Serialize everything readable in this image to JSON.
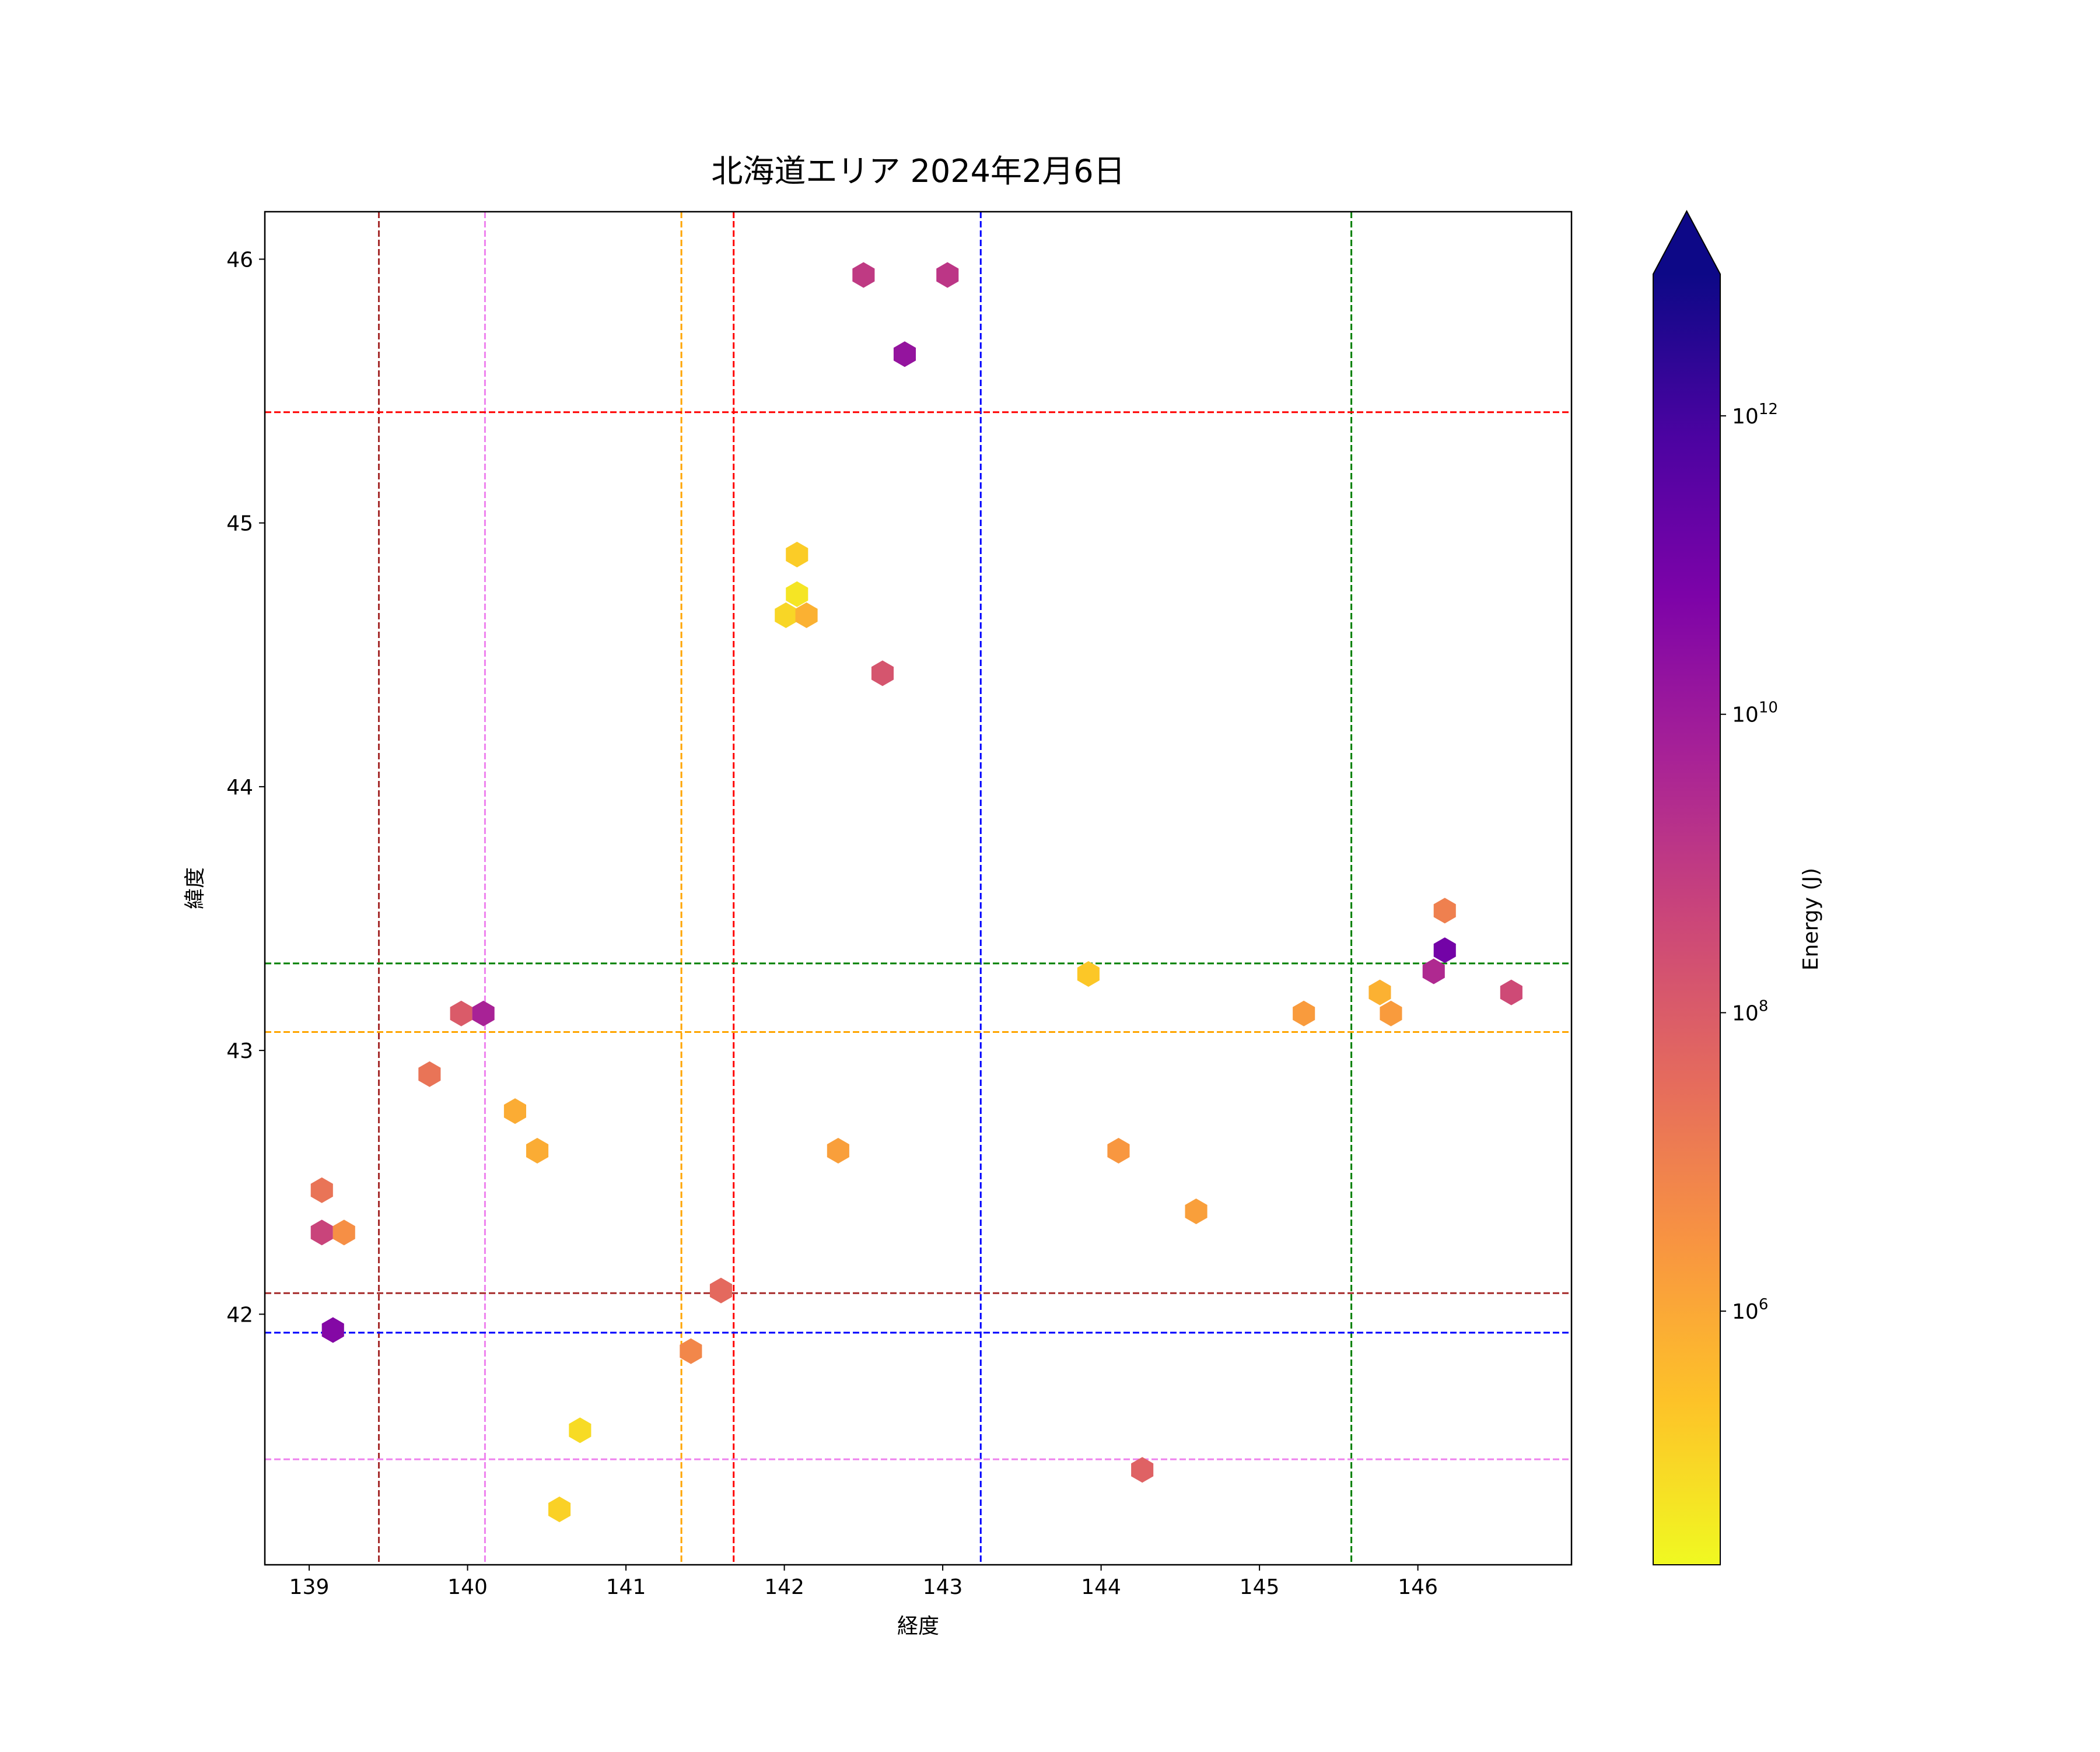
{
  "chart_data": {
    "type": "scatter",
    "marker": "hexagon",
    "title": "北海道エリア 2024年2月6日",
    "xlabel": "経度",
    "ylabel": "緯度",
    "xlim": [
      138.72,
      146.97
    ],
    "ylim": [
      41.05,
      46.18
    ],
    "xticks": [
      139,
      140,
      141,
      142,
      143,
      144,
      145,
      146
    ],
    "yticks": [
      42,
      43,
      44,
      45,
      46
    ],
    "grid": false,
    "colorbar": {
      "label": "Energy (J)",
      "scale": "log",
      "colormap": "plasma_r",
      "range_log10": [
        4.3,
        12.95
      ],
      "extend": "max",
      "ticks": [
        {
          "base": "10",
          "exp": "6",
          "log10": 6
        },
        {
          "base": "10",
          "exp": "8",
          "log10": 8
        },
        {
          "base": "10",
          "exp": "10",
          "log10": 10
        },
        {
          "base": "10",
          "exp": "12",
          "log10": 12
        }
      ]
    },
    "reference_lines": {
      "vertical": [
        {
          "x": 139.44,
          "color": "#a52a2a"
        },
        {
          "x": 140.11,
          "color": "#ee82ee"
        },
        {
          "x": 141.35,
          "color": "#ffa500"
        },
        {
          "x": 141.68,
          "color": "#ff0000"
        },
        {
          "x": 143.24,
          "color": "#0000ff"
        },
        {
          "x": 145.58,
          "color": "#008000"
        }
      ],
      "horizontal": [
        {
          "y": 45.42,
          "color": "#ff0000"
        },
        {
          "y": 43.33,
          "color": "#008000"
        },
        {
          "y": 43.07,
          "color": "#ffa500"
        },
        {
          "y": 42.08,
          "color": "#a52a2a"
        },
        {
          "y": 41.93,
          "color": "#0000ff"
        },
        {
          "y": 41.45,
          "color": "#ee82ee"
        }
      ]
    },
    "points": [
      {
        "lon": 142.5,
        "lat": 45.94,
        "log_energy": 9.0
      },
      {
        "lon": 143.03,
        "lat": 45.94,
        "log_energy": 9.1
      },
      {
        "lon": 142.76,
        "lat": 45.64,
        "log_energy": 10.2
      },
      {
        "lon": 142.08,
        "lat": 44.88,
        "log_energy": 5.2
      },
      {
        "lon": 142.08,
        "lat": 44.73,
        "log_energy": 4.7
      },
      {
        "lon": 142.01,
        "lat": 44.65,
        "log_energy": 5.0
      },
      {
        "lon": 142.14,
        "lat": 44.65,
        "log_energy": 5.8
      },
      {
        "lon": 142.62,
        "lat": 44.43,
        "log_energy": 8.2
      },
      {
        "lon": 146.17,
        "lat": 43.53,
        "log_energy": 7.0
      },
      {
        "lon": 146.17,
        "lat": 43.38,
        "log_energy": 11.0
      },
      {
        "lon": 146.1,
        "lat": 43.3,
        "log_energy": 9.5
      },
      {
        "lon": 143.92,
        "lat": 43.29,
        "log_energy": 5.3
      },
      {
        "lon": 145.76,
        "lat": 43.22,
        "log_energy": 5.8
      },
      {
        "lon": 146.59,
        "lat": 43.22,
        "log_energy": 8.5
      },
      {
        "lon": 145.28,
        "lat": 43.14,
        "log_energy": 6.3
      },
      {
        "lon": 145.83,
        "lat": 43.14,
        "log_energy": 6.3
      },
      {
        "lon": 139.96,
        "lat": 43.14,
        "log_energy": 8.0
      },
      {
        "lon": 140.1,
        "lat": 43.14,
        "log_energy": 9.7
      },
      {
        "lon": 139.76,
        "lat": 42.91,
        "log_energy": 7.3
      },
      {
        "lon": 140.3,
        "lat": 42.77,
        "log_energy": 5.9
      },
      {
        "lon": 140.44,
        "lat": 42.62,
        "log_energy": 5.9
      },
      {
        "lon": 142.34,
        "lat": 42.62,
        "log_energy": 6.2
      },
      {
        "lon": 144.11,
        "lat": 42.62,
        "log_energy": 6.4
      },
      {
        "lon": 139.08,
        "lat": 42.47,
        "log_energy": 7.3
      },
      {
        "lon": 144.6,
        "lat": 42.39,
        "log_energy": 6.2
      },
      {
        "lon": 139.08,
        "lat": 42.31,
        "log_energy": 8.7
      },
      {
        "lon": 139.22,
        "lat": 42.31,
        "log_energy": 6.6
      },
      {
        "lon": 141.6,
        "lat": 42.09,
        "log_energy": 7.6
      },
      {
        "lon": 139.15,
        "lat": 41.94,
        "log_energy": 10.6
      },
      {
        "lon": 141.41,
        "lat": 41.86,
        "log_energy": 6.8
      },
      {
        "lon": 140.71,
        "lat": 41.56,
        "log_energy": 4.9
      },
      {
        "lon": 144.26,
        "lat": 41.41,
        "log_energy": 7.8
      },
      {
        "lon": 140.58,
        "lat": 41.26,
        "log_energy": 5.1
      }
    ]
  }
}
